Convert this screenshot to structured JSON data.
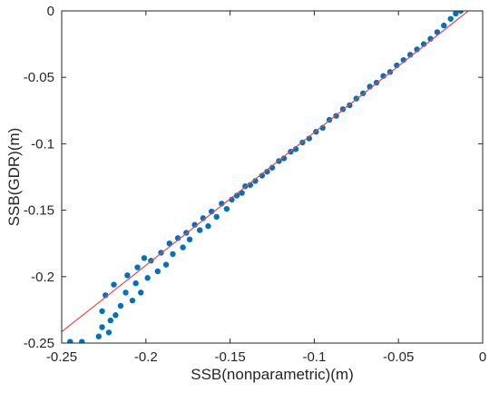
{
  "chart_data": {
    "type": "scatter",
    "title": "",
    "xlabel": "SSB(nonparametric)(m)",
    "ylabel": "SSB(GDR)(m)",
    "xlim": [
      -0.25,
      0
    ],
    "ylim": [
      -0.25,
      0
    ],
    "grid": false,
    "legend": "none",
    "x_ticks": [
      -0.25,
      -0.2,
      -0.15,
      -0.1,
      -0.05,
      0
    ],
    "x_tick_labels": [
      "-0.25",
      "-0.2",
      "-0.15",
      "-0.1",
      "-0.05",
      "0"
    ],
    "y_ticks": [
      -0.25,
      -0.2,
      -0.15,
      -0.1,
      -0.05,
      0
    ],
    "y_tick_labels": [
      "-0.25",
      "-0.2",
      "-0.15",
      "-0.1",
      "-0.05",
      "0"
    ],
    "point_color": "#0072BD",
    "fit_line_color": "#E8474B",
    "fit_line": {
      "x": [
        -0.25,
        0
      ],
      "y": [
        -0.2415,
        0.0085
      ]
    },
    "series": [
      {
        "values": [
          [
            -0.245,
            -0.249
          ],
          [
            -0.238,
            -0.249
          ],
          [
            -0.228,
            -0.245
          ],
          [
            -0.226,
            -0.238
          ],
          [
            -0.222,
            -0.242
          ],
          [
            -0.221,
            -0.233
          ],
          [
            -0.226,
            -0.226
          ],
          [
            -0.218,
            -0.229
          ],
          [
            -0.215,
            -0.222
          ],
          [
            -0.224,
            -0.214
          ],
          [
            -0.219,
            -0.206
          ],
          [
            -0.212,
            -0.212
          ],
          [
            -0.208,
            -0.218
          ],
          [
            -0.211,
            -0.199
          ],
          [
            -0.206,
            -0.205
          ],
          [
            -0.203,
            -0.212
          ],
          [
            -0.205,
            -0.193
          ],
          [
            -0.199,
            -0.201
          ],
          [
            -0.197,
            -0.188
          ],
          [
            -0.201,
            -0.186
          ],
          [
            -0.193,
            -0.196
          ],
          [
            -0.191,
            -0.182
          ],
          [
            -0.188,
            -0.191
          ],
          [
            -0.186,
            -0.175
          ],
          [
            -0.184,
            -0.183
          ],
          [
            -0.181,
            -0.171
          ],
          [
            -0.178,
            -0.178
          ],
          [
            -0.176,
            -0.167
          ],
          [
            -0.174,
            -0.172
          ],
          [
            -0.171,
            -0.161
          ],
          [
            -0.168,
            -0.165
          ],
          [
            -0.166,
            -0.156
          ],
          [
            -0.163,
            -0.162
          ],
          [
            -0.161,
            -0.151
          ],
          [
            -0.158,
            -0.155
          ],
          [
            -0.155,
            -0.145
          ],
          [
            -0.152,
            -0.149
          ],
          [
            -0.149,
            -0.142
          ],
          [
            -0.146,
            -0.139
          ],
          [
            -0.143,
            -0.137
          ],
          [
            -0.141,
            -0.132
          ],
          [
            -0.138,
            -0.131
          ],
          [
            -0.135,
            -0.128
          ],
          [
            -0.131,
            -0.124
          ],
          [
            -0.128,
            -0.121
          ],
          [
            -0.125,
            -0.118
          ],
          [
            -0.121,
            -0.113
          ],
          [
            -0.118,
            -0.111
          ],
          [
            -0.114,
            -0.106
          ],
          [
            -0.111,
            -0.104
          ],
          [
            -0.107,
            -0.099
          ],
          [
            -0.103,
            -0.096
          ],
          [
            -0.099,
            -0.091
          ],
          [
            -0.095,
            -0.088
          ],
          [
            -0.091,
            -0.082
          ],
          [
            -0.087,
            -0.079
          ],
          [
            -0.083,
            -0.074
          ],
          [
            -0.079,
            -0.071
          ],
          [
            -0.075,
            -0.066
          ],
          [
            -0.071,
            -0.062
          ],
          [
            -0.067,
            -0.057
          ],
          [
            -0.063,
            -0.054
          ],
          [
            -0.059,
            -0.049
          ],
          [
            -0.055,
            -0.046
          ],
          [
            -0.051,
            -0.041
          ],
          [
            -0.047,
            -0.037
          ],
          [
            -0.043,
            -0.033
          ],
          [
            -0.039,
            -0.029
          ],
          [
            -0.035,
            -0.025
          ],
          [
            -0.031,
            -0.021
          ],
          [
            -0.027,
            -0.016
          ],
          [
            -0.023,
            -0.011
          ],
          [
            -0.019,
            -0.006
          ],
          [
            -0.016,
            -0.002
          ],
          [
            -0.013,
            0.0
          ]
        ]
      }
    ]
  }
}
